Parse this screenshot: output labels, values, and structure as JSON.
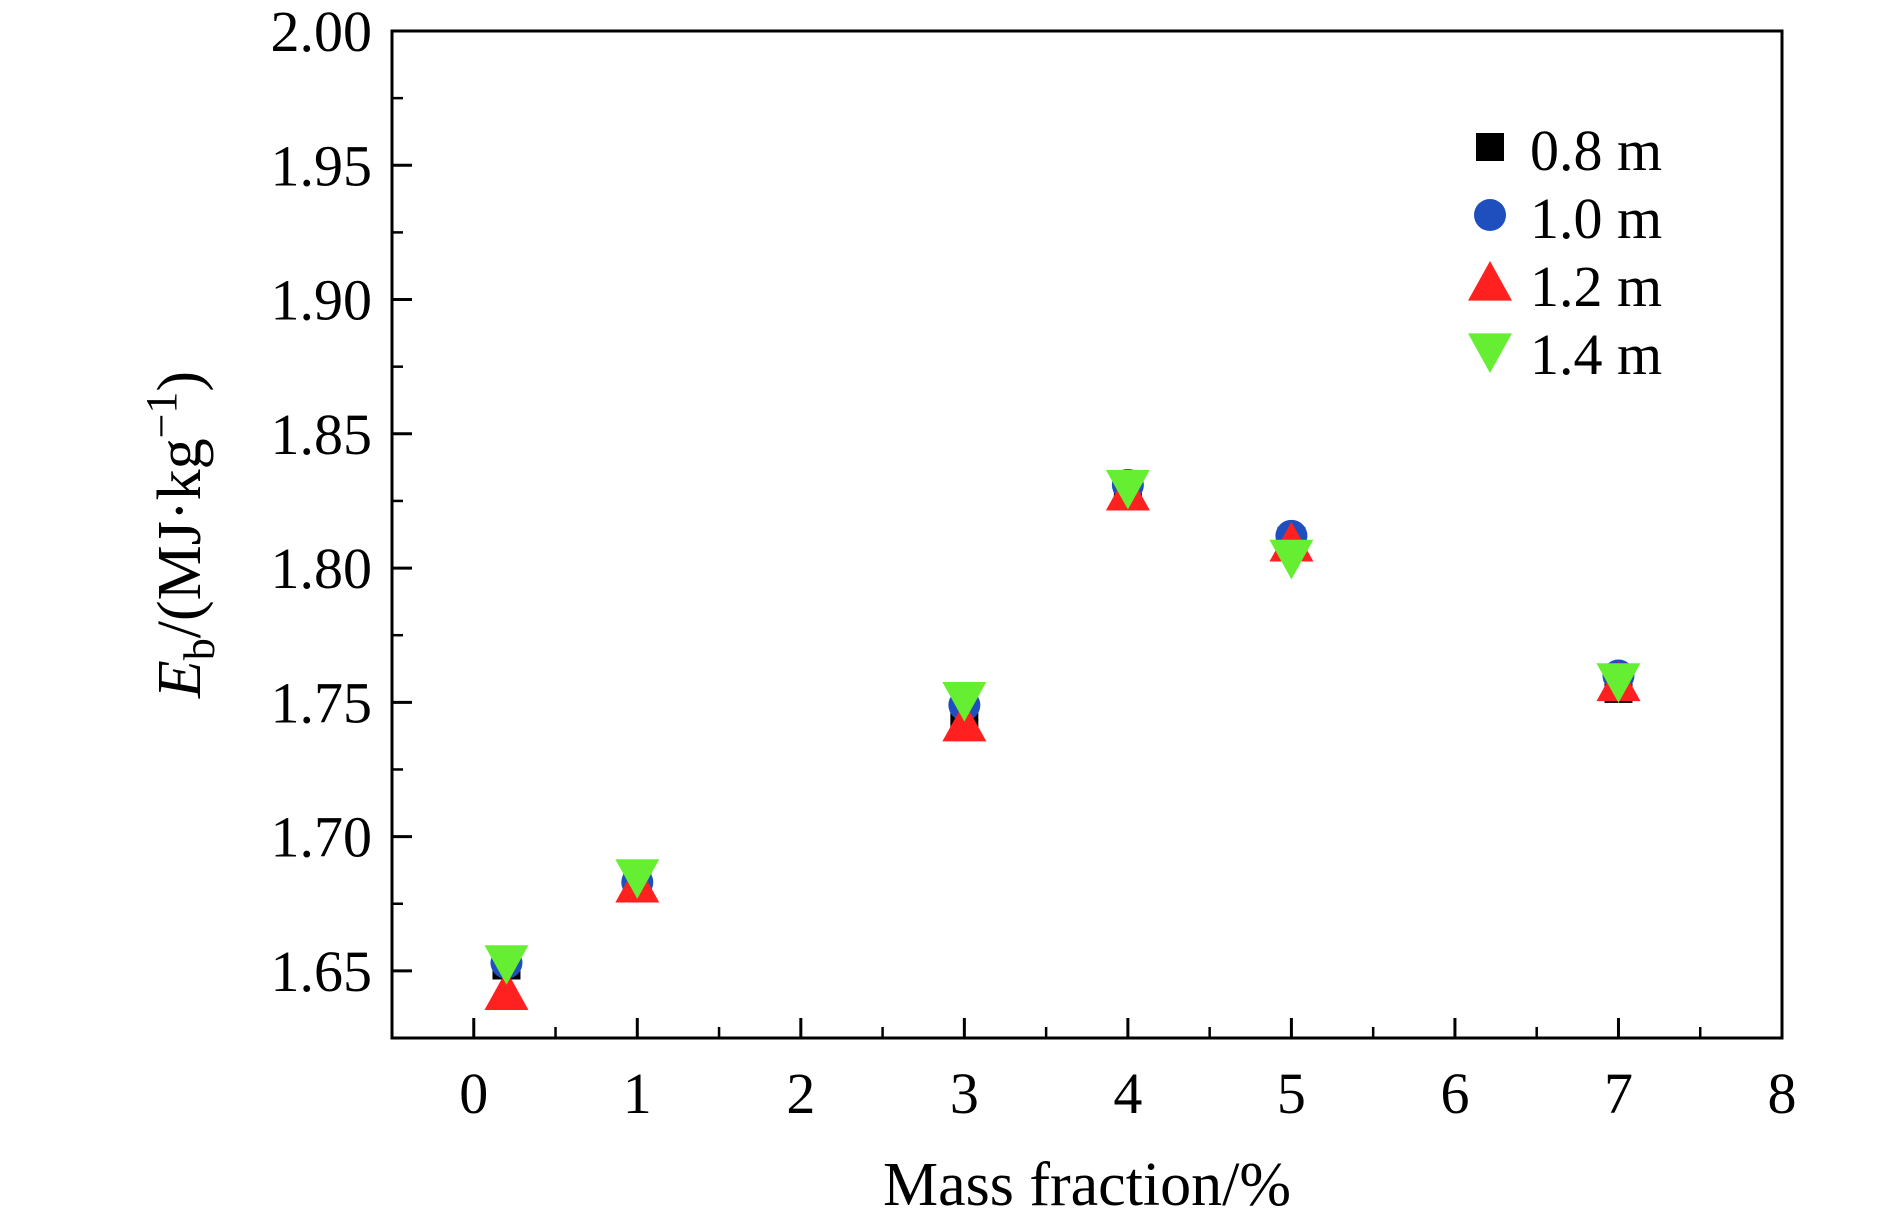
{
  "chart_data": {
    "type": "scatter",
    "title": "",
    "xlabel": "Mass fraction/%",
    "ylabel": {
      "var": "E",
      "sub": "b",
      "unit": "/(MJ·kg",
      "sup": "−1",
      "close": ")"
    },
    "xlim": [
      -0.5,
      8
    ],
    "ylim": [
      1.625,
      2.0
    ],
    "xticks": [
      0,
      1,
      2,
      3,
      4,
      5,
      6,
      7,
      8
    ],
    "yticks": [
      1.65,
      1.7,
      1.75,
      1.8,
      1.85,
      1.9,
      1.95,
      2.0
    ],
    "xtick_labels": [
      "0",
      "1",
      "2",
      "3",
      "4",
      "5",
      "6",
      "7",
      "8"
    ],
    "ytick_labels": [
      "1.65",
      "1.70",
      "1.75",
      "1.80",
      "1.85",
      "1.90",
      "1.95",
      "2.00"
    ],
    "grid": false,
    "legend_position": "top-right",
    "series": [
      {
        "name": "0.8 m",
        "marker": "square",
        "color": "#000000",
        "x": [
          0.2,
          1,
          3,
          4,
          5,
          7
        ],
        "y": [
          1.652,
          1.683,
          1.746,
          1.83,
          1.81,
          1.755
        ]
      },
      {
        "name": "1.0 m",
        "marker": "circle",
        "color": "#1f4fbf",
        "x": [
          0.2,
          1,
          3,
          4,
          5,
          7
        ],
        "y": [
          1.653,
          1.683,
          1.749,
          1.831,
          1.812,
          1.76
        ]
      },
      {
        "name": "1.2 m",
        "marker": "triangle-up",
        "color": "#ff2020",
        "x": [
          0.2,
          1,
          3,
          4,
          5,
          7
        ],
        "y": [
          1.642,
          1.682,
          1.742,
          1.828,
          1.809,
          1.757
        ]
      },
      {
        "name": "1.4 m",
        "marker": "triangle-down",
        "color": "#66ee33",
        "x": [
          0.2,
          1,
          3,
          4,
          5,
          7
        ],
        "y": [
          1.653,
          1.685,
          1.751,
          1.83,
          1.804,
          1.758
        ]
      }
    ]
  }
}
